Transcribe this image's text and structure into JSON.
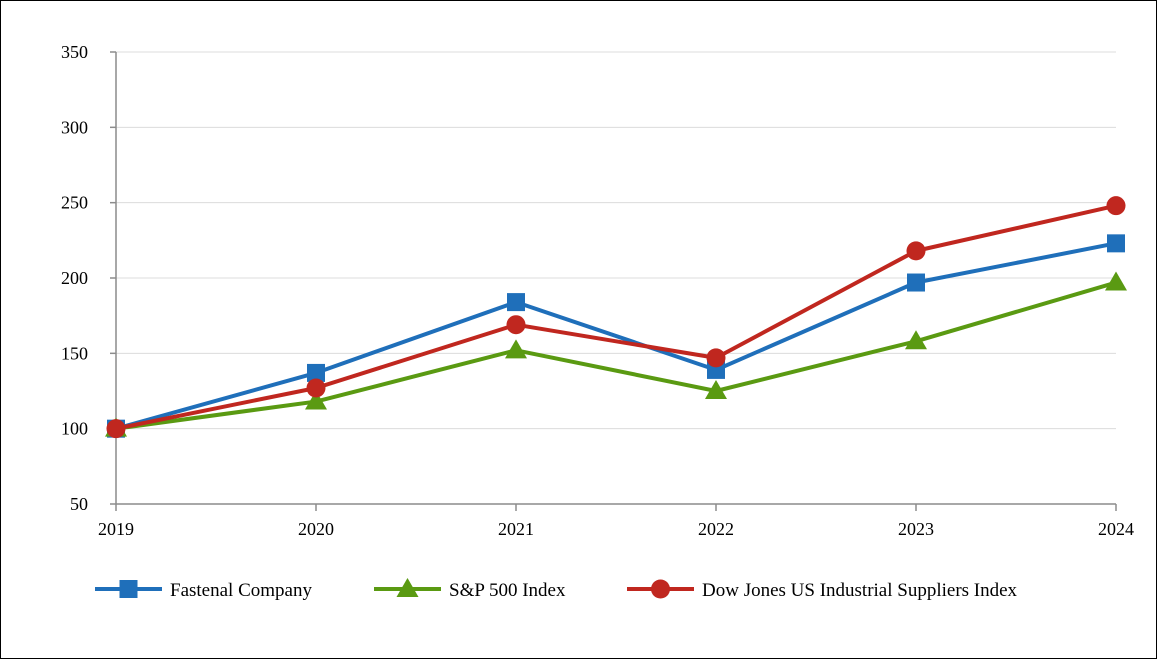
{
  "chart_data": {
    "type": "line",
    "title": "",
    "xlabel": "",
    "ylabel": "",
    "x": [
      "2019",
      "2020",
      "2021",
      "2022",
      "2023",
      "2024"
    ],
    "ylim": [
      50,
      350
    ],
    "yticks": [
      50,
      100,
      150,
      200,
      250,
      300,
      350
    ],
    "grid": "horizontal",
    "legend": "bottom",
    "series": [
      {
        "name": "Fastenal Company",
        "values": [
          100,
          137,
          184,
          139,
          197,
          223
        ],
        "color": "#1f6fba",
        "marker": "square"
      },
      {
        "name": "S&P 500 Index",
        "values": [
          100,
          118,
          152,
          125,
          158,
          197
        ],
        "color": "#5a9a12",
        "marker": "triangle"
      },
      {
        "name": "Dow Jones US Industrial Suppliers Index",
        "values": [
          100,
          127,
          169,
          147,
          218,
          248
        ],
        "color": "#c0271f",
        "marker": "circle"
      }
    ]
  }
}
